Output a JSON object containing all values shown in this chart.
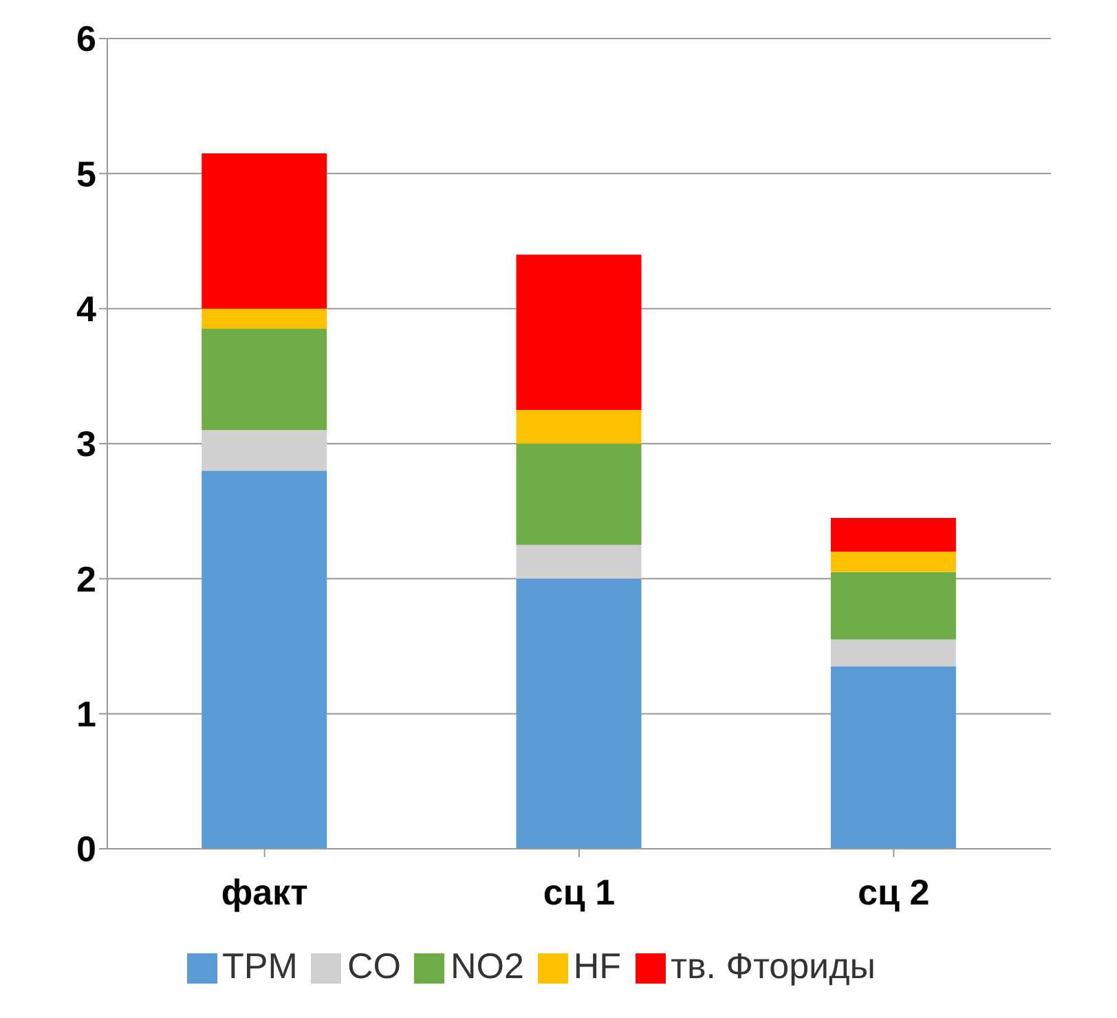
{
  "chart_data": {
    "type": "bar",
    "stacked": true,
    "categories": [
      "факт",
      "сц 1",
      "сц 2"
    ],
    "series": [
      {
        "name": "TPM",
        "color": "#5b9bd5",
        "values": [
          2.8,
          2.0,
          1.35
        ]
      },
      {
        "name": "CO",
        "color": "#d0d0d0",
        "values": [
          0.3,
          0.25,
          0.2
        ]
      },
      {
        "name": "NO2",
        "color": "#70ad47",
        "values": [
          0.75,
          0.75,
          0.5
        ]
      },
      {
        "name": "HF",
        "color": "#ffc000",
        "values": [
          0.15,
          0.25,
          0.15
        ]
      },
      {
        "name": "тв. Фториды",
        "color": "#ff0000",
        "values": [
          1.15,
          1.15,
          0.25
        ]
      }
    ],
    "ylim": [
      0,
      6
    ],
    "yticks": [
      0,
      1,
      2,
      3,
      4,
      5,
      6
    ],
    "grid": "y",
    "legend": "bottom"
  }
}
